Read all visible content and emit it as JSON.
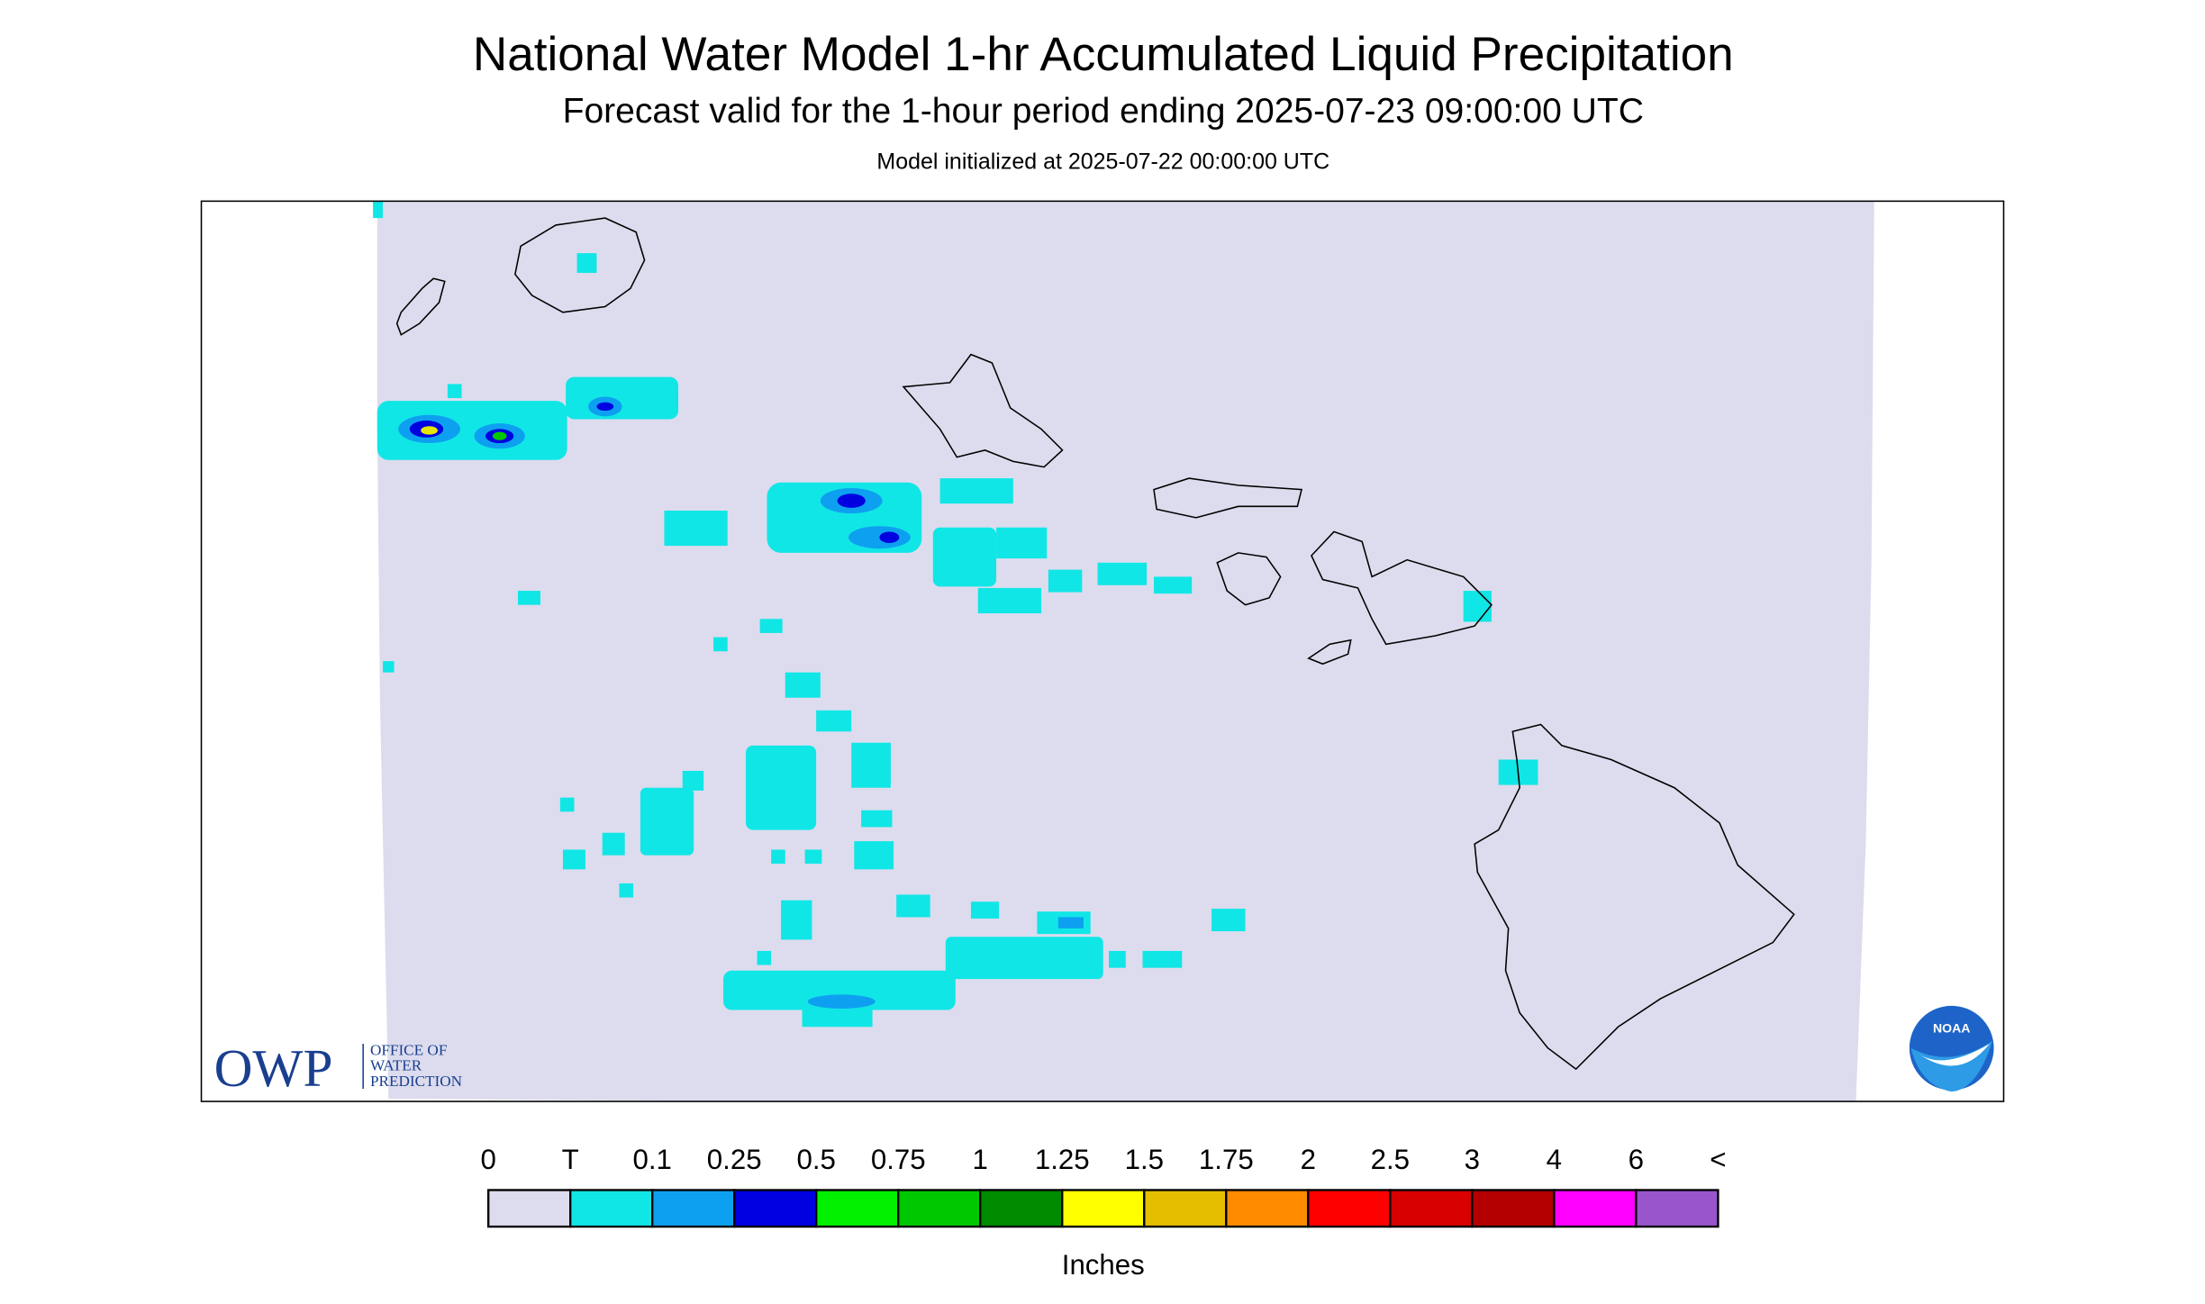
{
  "header": {
    "title": "National Water Model 1-hr Accumulated Liquid Precipitation",
    "subtitle": "Forecast valid for the 1-hour period ending 2025-07-23 09:00:00 UTC",
    "note": "Model initialized at 2025-07-22 00:00:00 UTC"
  },
  "legend": {
    "labels": [
      "0",
      "T",
      "0.1",
      "0.25",
      "0.5",
      "0.75",
      "1",
      "1.25",
      "1.5",
      "1.75",
      "2",
      "2.5",
      "3",
      "4",
      "6",
      "<"
    ],
    "colors": [
      "#dcdcee",
      "#11e6e6",
      "#0ea0f0",
      "#0000e0",
      "#00f000",
      "#00c800",
      "#008c00",
      "#ffff00",
      "#e6be00",
      "#ff8c00",
      "#ff0000",
      "#d80000",
      "#b40000",
      "#ff00ff",
      "#9955cc"
    ],
    "unit": "Inches"
  },
  "logos": {
    "owp": "OWP",
    "owp_lines": [
      "OFFICE OF",
      "WATER",
      "PREDICTION"
    ],
    "noaa": "NOAA"
  }
}
